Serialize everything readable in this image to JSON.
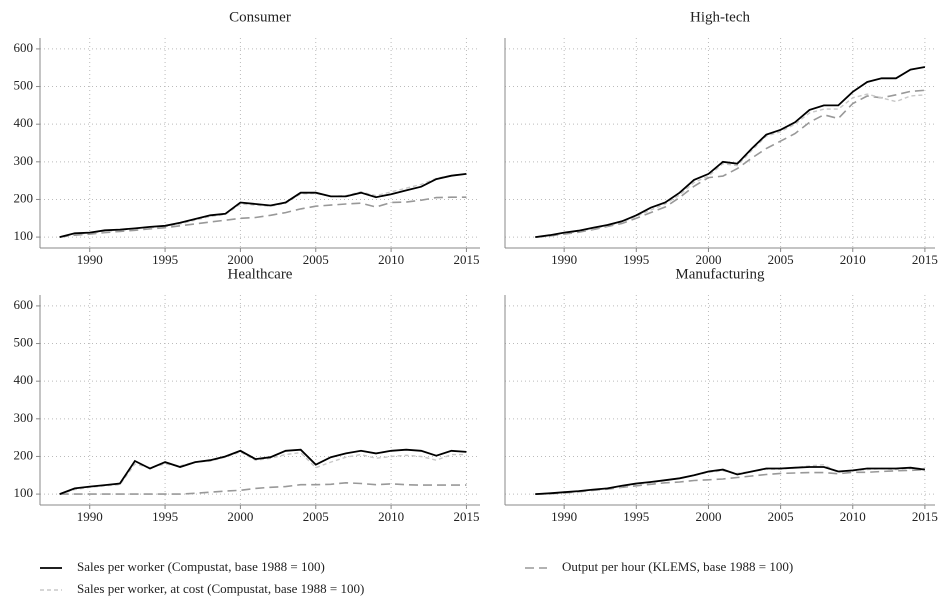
{
  "chart_data": [
    {
      "type": "line",
      "title": "Consumer",
      "x": [
        1988,
        1989,
        1990,
        1991,
        1992,
        1993,
        1994,
        1995,
        1996,
        1997,
        1998,
        1999,
        2000,
        2001,
        2002,
        2003,
        2004,
        2005,
        2006,
        2007,
        2008,
        2009,
        2010,
        2011,
        2012,
        2013,
        2014,
        2015
      ],
      "xlim": [
        1986.7,
        2015.9
      ],
      "xticks": [
        1990,
        1995,
        2000,
        2005,
        2010,
        2015
      ],
      "ylim": [
        71,
        629
      ],
      "yticks": [
        100,
        200,
        300,
        400,
        500,
        600
      ],
      "grid": true,
      "series": [
        {
          "name": "Sales per worker (Compustat, base 1988 = 100)",
          "color": "#000000",
          "style": "solid",
          "values": [
            100,
            110,
            112,
            118,
            120,
            123,
            127,
            130,
            138,
            148,
            158,
            162,
            192,
            188,
            184,
            192,
            218,
            218,
            208,
            208,
            218,
            206,
            214,
            224,
            234,
            254,
            263,
            268
          ]
        },
        {
          "name": "Sales per worker, at cost (Compustat, base 1988 = 100)",
          "color": "#c8c8c8",
          "style": "dashed",
          "values": [
            100,
            108,
            110,
            115,
            118,
            122,
            125,
            128,
            135,
            145,
            155,
            160,
            188,
            185,
            182,
            190,
            215,
            216,
            208,
            210,
            220,
            210,
            220,
            230,
            240,
            256,
            264,
            268
          ]
        },
        {
          "name": "Output per hour (KLEMS, base 1988 = 100)",
          "color": "#999999",
          "style": "longdash",
          "values": [
            100,
            105,
            108,
            112,
            115,
            118,
            122,
            125,
            130,
            135,
            140,
            145,
            150,
            152,
            158,
            165,
            175,
            182,
            185,
            188,
            190,
            180,
            192,
            193,
            198,
            205,
            206,
            206
          ]
        }
      ]
    },
    {
      "type": "line",
      "title": "High-tech",
      "sharey": true,
      "x": [
        1988,
        1989,
        1990,
        1991,
        1992,
        1993,
        1994,
        1995,
        1996,
        1997,
        1998,
        1999,
        2000,
        2001,
        2002,
        2003,
        2004,
        2005,
        2006,
        2007,
        2008,
        2009,
        2010,
        2011,
        2012,
        2013,
        2014,
        2015
      ],
      "xlim": [
        1985.9,
        2015.7
      ],
      "xticks": [
        1990,
        1995,
        2000,
        2005,
        2010,
        2015
      ],
      "ylim": [
        71,
        629
      ],
      "grid": true,
      "series": [
        {
          "color": "#000000",
          "style": "solid",
          "values": [
            100,
            105,
            112,
            117,
            125,
            132,
            142,
            158,
            178,
            192,
            218,
            252,
            268,
            300,
            295,
            335,
            372,
            385,
            405,
            438,
            450,
            450,
            486,
            512,
            522,
            522,
            545,
            552
          ]
        },
        {
          "color": "#c8c8c8",
          "style": "dashed",
          "values": [
            100,
            104,
            110,
            115,
            122,
            130,
            140,
            155,
            172,
            188,
            212,
            245,
            262,
            295,
            290,
            330,
            368,
            380,
            400,
            430,
            440,
            440,
            470,
            480,
            470,
            460,
            475,
            478
          ]
        },
        {
          "color": "#999999",
          "style": "longdash",
          "values": [
            100,
            103,
            108,
            113,
            120,
            128,
            136,
            150,
            165,
            180,
            205,
            235,
            258,
            262,
            282,
            310,
            335,
            355,
            375,
            405,
            425,
            415,
            455,
            475,
            470,
            478,
            487,
            490
          ]
        }
      ]
    },
    {
      "type": "line",
      "title": "Healthcare",
      "x": [
        1988,
        1989,
        1990,
        1991,
        1992,
        1993,
        1994,
        1995,
        1996,
        1997,
        1998,
        1999,
        2000,
        2001,
        2002,
        2003,
        2004,
        2005,
        2006,
        2007,
        2008,
        2009,
        2010,
        2011,
        2012,
        2013,
        2014,
        2015
      ],
      "xlim": [
        1986.7,
        2015.9
      ],
      "xticks": [
        1990,
        1995,
        2000,
        2005,
        2010,
        2015
      ],
      "ylim": [
        71,
        629
      ],
      "yticks": [
        100,
        200,
        300,
        400,
        500,
        600
      ],
      "grid": true,
      "series": [
        {
          "color": "#000000",
          "style": "solid",
          "values": [
            100,
            115,
            120,
            124,
            128,
            188,
            168,
            185,
            172,
            185,
            190,
            200,
            215,
            193,
            198,
            215,
            218,
            178,
            198,
            208,
            215,
            208,
            215,
            218,
            215,
            202,
            215,
            212
          ]
        },
        {
          "color": "#c8c8c8",
          "style": "dashed",
          "values": [
            100,
            112,
            118,
            122,
            125,
            180,
            170,
            180,
            175,
            185,
            188,
            198,
            212,
            190,
            195,
            205,
            210,
            170,
            185,
            198,
            205,
            195,
            200,
            203,
            200,
            190,
            205,
            205
          ]
        },
        {
          "color": "#999999",
          "style": "longdash",
          "values": [
            100,
            100,
            100,
            100,
            100,
            100,
            100,
            100,
            100,
            102,
            105,
            108,
            110,
            115,
            118,
            120,
            125,
            125,
            126,
            130,
            128,
            125,
            127,
            125,
            124,
            124,
            124,
            124
          ]
        }
      ]
    },
    {
      "type": "line",
      "title": "Manufacturing",
      "sharey": true,
      "x": [
        1988,
        1989,
        1990,
        1991,
        1992,
        1993,
        1994,
        1995,
        1996,
        1997,
        1998,
        1999,
        2000,
        2001,
        2002,
        2003,
        2004,
        2005,
        2006,
        2007,
        2008,
        2009,
        2010,
        2011,
        2012,
        2013,
        2014,
        2015
      ],
      "xlim": [
        1985.9,
        2015.7
      ],
      "xticks": [
        1990,
        1995,
        2000,
        2005,
        2010,
        2015
      ],
      "ylim": [
        71,
        629
      ],
      "grid": true,
      "series": [
        {
          "color": "#000000",
          "style": "solid",
          "values": [
            100,
            102,
            105,
            108,
            112,
            115,
            122,
            128,
            132,
            137,
            142,
            150,
            160,
            165,
            152,
            160,
            168,
            168,
            170,
            172,
            172,
            160,
            163,
            168,
            168,
            168,
            170,
            165
          ]
        },
        {
          "color": "#c8c8c8",
          "style": "dashed",
          "values": [
            100,
            102,
            104,
            107,
            111,
            115,
            120,
            126,
            130,
            136,
            142,
            150,
            158,
            162,
            155,
            160,
            166,
            166,
            170,
            175,
            178,
            158,
            162,
            165,
            168,
            165,
            168,
            168
          ]
        },
        {
          "color": "#999999",
          "style": "longdash",
          "values": [
            100,
            101,
            103,
            106,
            110,
            113,
            118,
            122,
            126,
            130,
            132,
            136,
            138,
            140,
            144,
            148,
            152,
            155,
            156,
            157,
            157,
            154,
            158,
            158,
            160,
            162,
            163,
            165
          ]
        }
      ]
    }
  ]
}
